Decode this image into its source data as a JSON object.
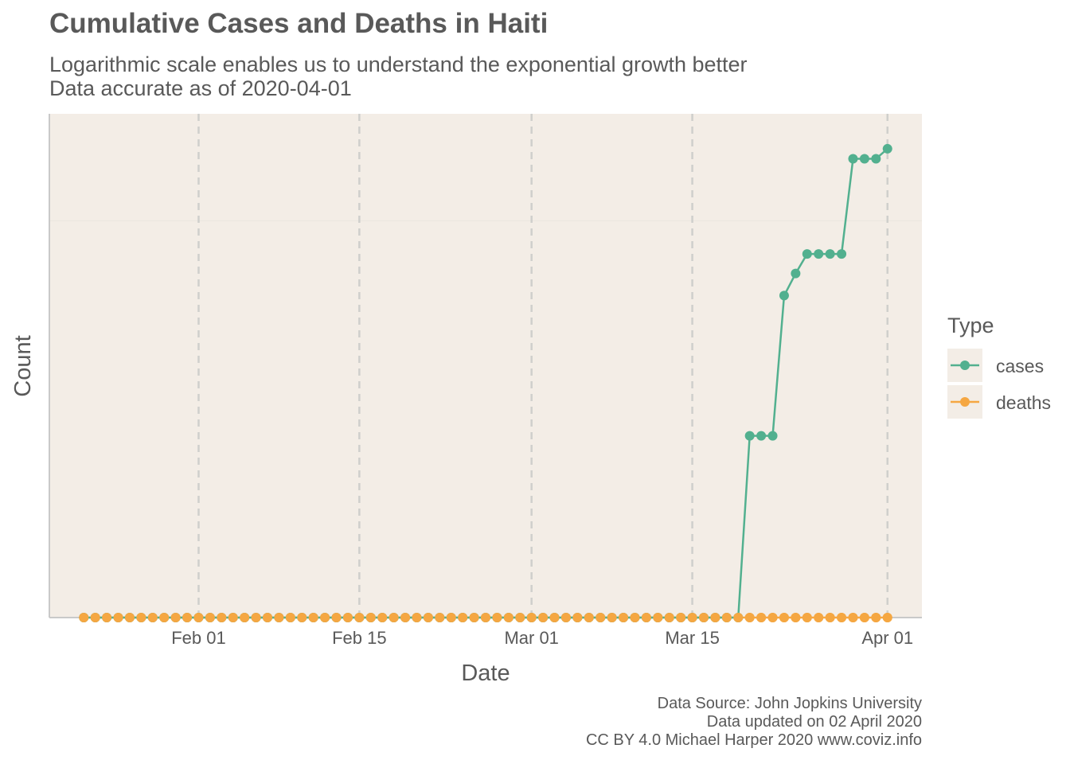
{
  "title": "Cumulative Cases and Deaths in Haiti",
  "subtitle_line1": "Logarithmic scale enables us to understand the exponential growth better",
  "subtitle_line2": "Data accurate as of 2020-04-01",
  "caption": [
    "Data Source: John Jopkins University",
    "Data updated on 02 April 2020",
    "CC BY 4.0 Michael Harper 2020 www.coviz.info"
  ],
  "colors": {
    "panel_bg": "#f3ede6",
    "cases": "#52b08f",
    "deaths": "#f5a742",
    "grid": "#cfcfcc",
    "axis": "#c9c9c9"
  },
  "chart_data": {
    "type": "line",
    "title": "Cumulative Cases and Deaths in Haiti",
    "xlabel": "Date",
    "ylabel": "Count",
    "y_scale": "log",
    "y_tick_labels_shown": false,
    "xlim": [
      "2020-01-19",
      "2020-04-04"
    ],
    "ylim": [
      0,
      20
    ],
    "x_ticks": [
      {
        "date": "2020-02-01",
        "label": "Feb 01"
      },
      {
        "date": "2020-02-15",
        "label": "Feb 15"
      },
      {
        "date": "2020-03-01",
        "label": "Mar 01"
      },
      {
        "date": "2020-03-15",
        "label": "Mar 15"
      },
      {
        "date": "2020-04-01",
        "label": "Apr 01"
      }
    ],
    "grid": true,
    "legend": {
      "title": "Type",
      "position": "right",
      "entries": [
        "cases",
        "deaths"
      ]
    },
    "x_start": "2020-01-22",
    "x_end": "2020-04-01",
    "series": [
      {
        "name": "cases",
        "points": [
          [
            "2020-03-19",
            0
          ],
          [
            "2020-03-20",
            2
          ],
          [
            "2020-03-21",
            2
          ],
          [
            "2020-03-22",
            2
          ],
          [
            "2020-03-23",
            6
          ],
          [
            "2020-03-24",
            7
          ],
          [
            "2020-03-25",
            8
          ],
          [
            "2020-03-26",
            8
          ],
          [
            "2020-03-27",
            8
          ],
          [
            "2020-03-28",
            8
          ],
          [
            "2020-03-29",
            15
          ],
          [
            "2020-03-30",
            15
          ],
          [
            "2020-03-31",
            15
          ],
          [
            "2020-04-01",
            16
          ]
        ]
      },
      {
        "name": "deaths",
        "points": []
      }
    ]
  }
}
